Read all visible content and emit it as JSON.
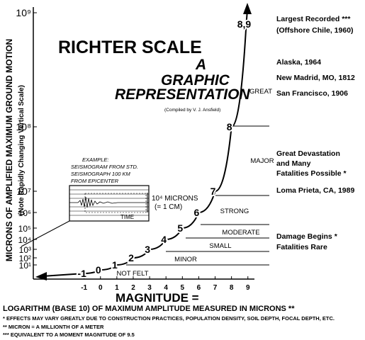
{
  "chart_data": {
    "type": "line",
    "title": "RICHTER SCALE",
    "subtitle_lines": [
      "A",
      "GRAPHIC",
      "REPRESENTATION"
    ],
    "credit": "(Compiled by V. J. Ansfield)",
    "y_label": "MICRONS OF AMPLIFIED MAXIMUM GROUND MOTION",
    "y_note": "(Note Rapidly Changing Vertical Scale)",
    "x_label": "MAGNITUDE =",
    "x_label_definition": "LOGARITHM (BASE 10) OF MAXIMUM AMPLITUDE MEASURED IN MICRONS **",
    "log_y": true,
    "x": [
      -1,
      0,
      1,
      2,
      3,
      4,
      5,
      6,
      7,
      8,
      {
        "value": 8.9,
        "label": "8,9"
      }
    ],
    "values": [
      0.1,
      1,
      10,
      100,
      1000,
      10000,
      100000,
      1000000,
      10000000,
      100000000,
      794328235
    ],
    "color": "#000000",
    "xlim": [
      -4.1,
      9.4
    ],
    "xticks": [
      -1,
      0,
      1,
      2,
      3,
      4,
      5,
      6,
      7,
      8,
      9
    ],
    "ylim": [
      0.001,
      1000000000
    ],
    "yticks": [
      {
        "value": 1000000000,
        "label": "10⁹"
      },
      {
        "value": 100000000,
        "label": "10⁸"
      },
      {
        "value": 10000000,
        "label": "10⁷"
      },
      {
        "value": 1000000,
        "label": "10⁶"
      },
      {
        "value": 100000,
        "label": "10⁵"
      },
      {
        "value": 10000,
        "label": "10⁴"
      },
      {
        "value": 1000,
        "label": "10³"
      },
      {
        "value": 100,
        "label": "10²"
      },
      {
        "value": 10,
        "label": "10¹"
      }
    ],
    "bands": [
      "GREAT",
      "MAJOR",
      "STRONG",
      "MODERATE",
      "SMALL",
      "MINOR",
      "NOT FELT"
    ],
    "annotations": [
      "Largest Recorded ***",
      "(Offshore Chile, 1960)",
      "Alaska, 1964",
      "New Madrid, MO, 1812",
      "San Francisco, 1906",
      "Great Devastation",
      "and Many",
      "Fatalities Possible *",
      "Loma Prieta, CA,  1989",
      "Damage Begins *",
      "Fatalities Rare"
    ],
    "inset": [
      "EXAMPLE:",
      "SEISMOGRAM FROM STD.",
      "SEISMOGRAPH 100 KM",
      "FROM EPICENTER",
      "10⁴ MICRONS",
      "(= 1 CM)",
      "TIME"
    ],
    "footnotes": [
      "* EFFECTS MAY VARY GREATLY DUE TO CONSTRUCTION PRACTICES, POPULATION DENSITY, SOIL DEPTH, FOCAL DEPTH, ETC.",
      "** MICRON = A MILLIONTH OF A METER",
      "*** EQUIVALENT TO A MOMENT MAGNITUDE OF 9.5"
    ]
  }
}
